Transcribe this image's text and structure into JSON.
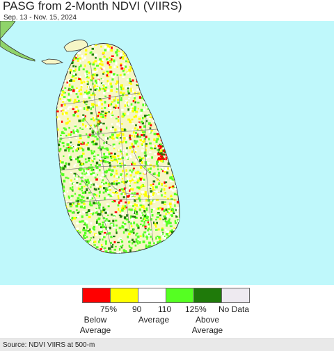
{
  "header": {
    "title": "PASG from 2-Month NDVI (VIIRS)",
    "subtitle": "Sep. 13 - Nov. 15, 2024"
  },
  "map": {
    "ocean_color": "#bff8fb",
    "land_base_color": "#f6f6c6",
    "palette": {
      "below_75": "#ff0000",
      "p75_90": "#ffff00",
      "p90_110": "#ffffff",
      "p110_125": "#55ff22",
      "above_125": "#1f7a0a",
      "no_data": "#eeeaf0",
      "boundary": "#808080",
      "coast": "#333333"
    }
  },
  "legend": {
    "colors": [
      "#ff0000",
      "#ffff00",
      "#ffffff",
      "#55ff22",
      "#1f7a0a",
      "#eeeaf0"
    ],
    "ticks": [
      "75%",
      "90",
      "110",
      "125%"
    ],
    "no_data": "No Data",
    "below_line1": "Below",
    "below_line2": "Average",
    "average": "Average",
    "above_line1": "Above",
    "above_line2": "Average"
  },
  "footer": {
    "source": "Source: NDVI VIIRS at 500-m"
  }
}
